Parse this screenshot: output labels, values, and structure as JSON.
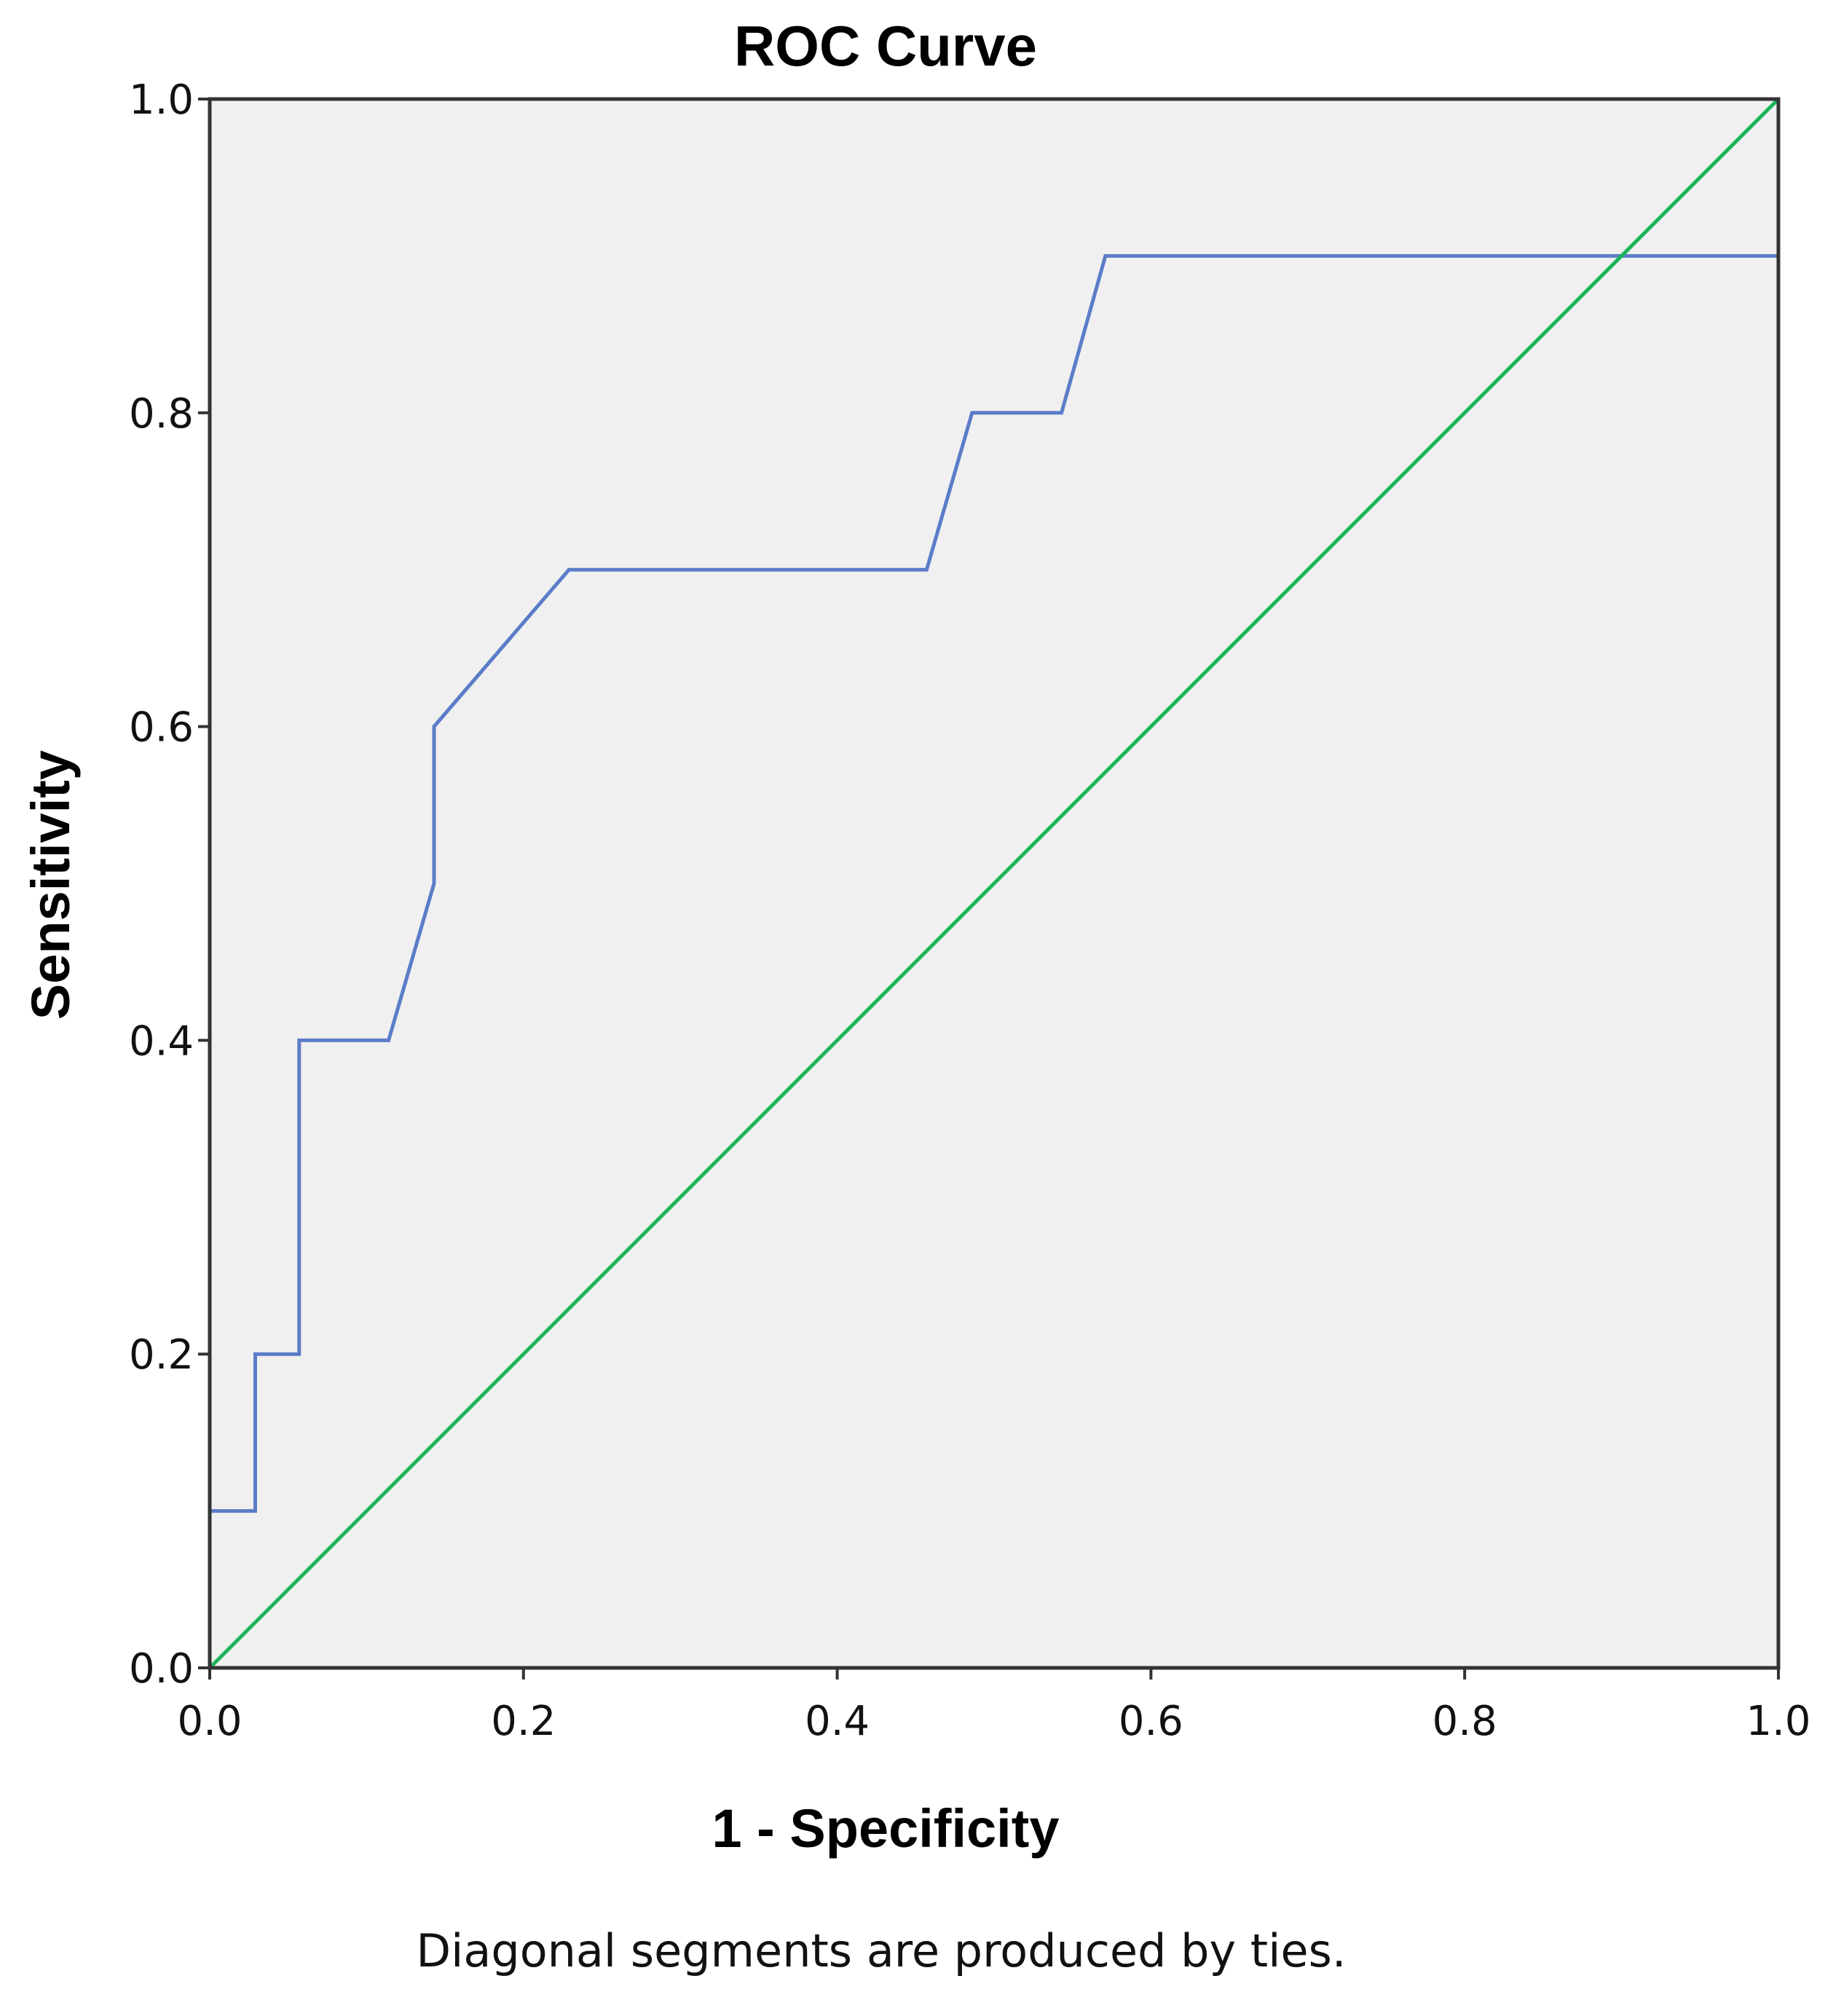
{
  "chart_data": {
    "type": "line",
    "title": "ROC Curve",
    "xlabel": "1 - Specificity",
    "ylabel": "Sensitivity",
    "xlim": [
      0.0,
      1.0
    ],
    "ylim": [
      0.0,
      1.0
    ],
    "xticks": [
      "0.0",
      "0.2",
      "0.4",
      "0.6",
      "0.8",
      "1.0"
    ],
    "yticks": [
      "0.0",
      "0.2",
      "0.4",
      "0.6",
      "0.8",
      "1.0"
    ],
    "grid": false,
    "background_color": "#f0f0f0",
    "footnote": "Diagonal segments are produced by ties.",
    "series": [
      {
        "color": "#5b7dc8",
        "x": [
          0.0,
          0.0,
          0.029,
          0.029,
          0.057,
          0.057,
          0.114,
          0.143,
          0.143,
          0.229,
          0.457,
          0.486,
          0.543,
          0.571,
          1.0,
          1.0
        ],
        "y": [
          0.0,
          0.1,
          0.1,
          0.2,
          0.2,
          0.4,
          0.4,
          0.5,
          0.6,
          0.7,
          0.7,
          0.8,
          0.8,
          0.9,
          0.9,
          1.0
        ]
      },
      {
        "color": "#1bb35a",
        "x": [
          0.0,
          1.0
        ],
        "y": [
          0.0,
          1.0
        ]
      }
    ]
  }
}
